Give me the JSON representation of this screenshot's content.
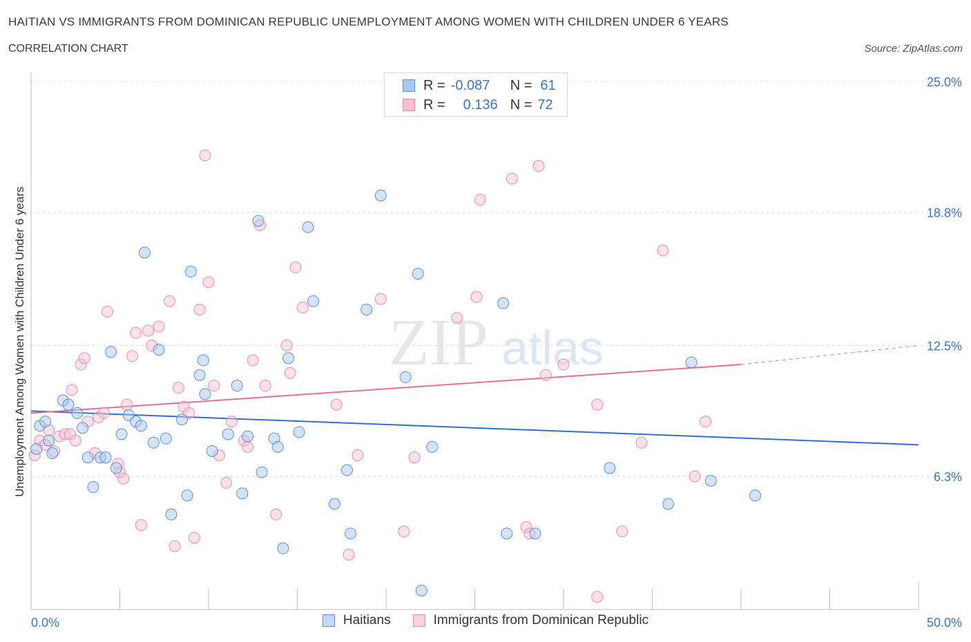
{
  "header": {
    "title": "HAITIAN VS IMMIGRANTS FROM DOMINICAN REPUBLIC UNEMPLOYMENT AMONG WOMEN WITH CHILDREN UNDER 6 YEARS",
    "subtitle": "CORRELATION CHART",
    "source": "Source: ZipAtlas.com"
  },
  "watermark": {
    "zip": "ZIP",
    "atlas": "atlas"
  },
  "legend": {
    "rows": [
      {
        "r_label": "R =",
        "r_value": "-0.087",
        "n_label": "N =",
        "n_value": "61"
      },
      {
        "r_label": "R =",
        "r_value": "0.136",
        "n_label": "N =",
        "n_value": "72"
      }
    ]
  },
  "colors": {
    "blue_fill": "#aac8f0",
    "blue_stroke": "#5b8fd6",
    "blue_line": "#2e6fcf",
    "pink_fill": "#f7bfd0",
    "pink_stroke": "#e98aa8",
    "pink_line": "#e0709a",
    "axis_label": "#3b73c9",
    "grid": "#dcdcdc"
  },
  "chart_data": {
    "type": "scatter",
    "title": "HAITIAN VS IMMIGRANTS FROM DOMINICAN REPUBLIC UNEMPLOYMENT AMONG WOMEN WITH CHILDREN UNDER 6 YEARS",
    "xlabel": "",
    "ylabel": "Unemployment Among Women with Children Under 6 years",
    "xlim": [
      0,
      50
    ],
    "ylim": [
      0,
      25
    ],
    "x_tick_labels": [
      "0.0%",
      "50.0%"
    ],
    "y_ticks": [
      6.3,
      12.5,
      18.8,
      25.0
    ],
    "y_tick_labels": [
      "6.3%",
      "12.5%",
      "18.8%",
      "25.0%"
    ],
    "grid": true,
    "legend_position": "top-center",
    "series": [
      {
        "name": "Haitians",
        "r": -0.087,
        "n": 61,
        "trend": {
          "x": [
            0,
            50
          ],
          "y": [
            9.4,
            7.8
          ]
        },
        "points": [
          [
            0.3,
            7.6
          ],
          [
            0.5,
            8.7
          ],
          [
            0.8,
            8.9
          ],
          [
            1.0,
            8.0
          ],
          [
            1.2,
            7.4
          ],
          [
            1.8,
            9.9
          ],
          [
            2.1,
            9.7
          ],
          [
            2.6,
            9.3
          ],
          [
            2.9,
            8.6
          ],
          [
            3.2,
            7.2
          ],
          [
            3.5,
            5.8
          ],
          [
            3.9,
            7.2
          ],
          [
            4.2,
            7.2
          ],
          [
            4.5,
            12.2
          ],
          [
            4.8,
            6.7
          ],
          [
            5.1,
            8.3
          ],
          [
            5.5,
            9.2
          ],
          [
            5.9,
            8.9
          ],
          [
            6.2,
            8.7
          ],
          [
            6.4,
            16.9
          ],
          [
            6.9,
            7.9
          ],
          [
            7.2,
            12.3
          ],
          [
            7.6,
            8.1
          ],
          [
            7.9,
            4.5
          ],
          [
            8.5,
            9.0
          ],
          [
            8.8,
            5.4
          ],
          [
            9.0,
            16.0
          ],
          [
            9.5,
            11.1
          ],
          [
            9.7,
            11.8
          ],
          [
            9.8,
            10.2
          ],
          [
            10.2,
            7.5
          ],
          [
            11.1,
            8.3
          ],
          [
            11.6,
            10.6
          ],
          [
            11.9,
            5.5
          ],
          [
            12.2,
            8.2
          ],
          [
            12.8,
            18.4
          ],
          [
            13.0,
            6.5
          ],
          [
            13.7,
            8.1
          ],
          [
            13.9,
            7.7
          ],
          [
            14.2,
            2.9
          ],
          [
            14.5,
            11.9
          ],
          [
            15.1,
            8.4
          ],
          [
            15.6,
            18.1
          ],
          [
            15.9,
            14.6
          ],
          [
            17.1,
            5.0
          ],
          [
            17.8,
            6.6
          ],
          [
            18.0,
            3.6
          ],
          [
            18.9,
            14.2
          ],
          [
            19.7,
            19.6
          ],
          [
            21.1,
            11.0
          ],
          [
            21.8,
            15.9
          ],
          [
            22.0,
            0.9
          ],
          [
            22.6,
            7.7
          ],
          [
            26.6,
            14.5
          ],
          [
            26.8,
            3.6
          ],
          [
            28.4,
            3.6
          ],
          [
            32.6,
            6.7
          ],
          [
            35.9,
            5.0
          ],
          [
            37.2,
            11.7
          ],
          [
            38.3,
            6.1
          ],
          [
            40.8,
            5.4
          ]
        ]
      },
      {
        "name": "Immigrants from Dominican Republic",
        "r": 0.136,
        "n": 72,
        "trend": {
          "x": [
            0,
            40
          ],
          "y": [
            9.3,
            11.6
          ]
        },
        "trend_dashed": {
          "x": [
            40,
            50
          ],
          "y": [
            11.6,
            12.5
          ]
        },
        "points": [
          [
            0.2,
            7.3
          ],
          [
            0.5,
            8.0
          ],
          [
            0.8,
            7.8
          ],
          [
            1.0,
            8.5
          ],
          [
            1.3,
            7.5
          ],
          [
            1.6,
            8.2
          ],
          [
            1.9,
            8.3
          ],
          [
            2.2,
            8.3
          ],
          [
            2.3,
            10.4
          ],
          [
            2.5,
            8.0
          ],
          [
            2.8,
            11.6
          ],
          [
            3.0,
            11.9
          ],
          [
            3.2,
            8.9
          ],
          [
            3.6,
            7.4
          ],
          [
            3.8,
            9.1
          ],
          [
            4.1,
            9.3
          ],
          [
            4.3,
            14.1
          ],
          [
            4.9,
            6.9
          ],
          [
            5.0,
            6.5
          ],
          [
            5.2,
            6.2
          ],
          [
            5.4,
            9.7
          ],
          [
            5.7,
            12.0
          ],
          [
            5.9,
            13.1
          ],
          [
            6.2,
            4.0
          ],
          [
            6.6,
            13.2
          ],
          [
            6.8,
            12.5
          ],
          [
            7.2,
            13.4
          ],
          [
            7.8,
            14.6
          ],
          [
            8.1,
            3.0
          ],
          [
            8.3,
            10.5
          ],
          [
            8.6,
            9.6
          ],
          [
            8.9,
            9.3
          ],
          [
            9.2,
            3.4
          ],
          [
            9.5,
            14.2
          ],
          [
            9.8,
            21.5
          ],
          [
            10.0,
            15.5
          ],
          [
            10.3,
            10.6
          ],
          [
            10.6,
            7.3
          ],
          [
            11.0,
            6.0
          ],
          [
            11.3,
            8.9
          ],
          [
            12.0,
            8.0
          ],
          [
            12.2,
            7.7
          ],
          [
            12.5,
            11.8
          ],
          [
            12.9,
            18.2
          ],
          [
            13.2,
            10.6
          ],
          [
            13.8,
            4.5
          ],
          [
            14.4,
            12.5
          ],
          [
            14.6,
            11.2
          ],
          [
            14.9,
            16.2
          ],
          [
            15.3,
            14.3
          ],
          [
            17.2,
            9.7
          ],
          [
            17.9,
            2.6
          ],
          [
            18.4,
            7.3
          ],
          [
            19.7,
            14.7
          ],
          [
            21.0,
            3.7
          ],
          [
            21.6,
            7.2
          ],
          [
            24.0,
            13.8
          ],
          [
            25.1,
            14.8
          ],
          [
            25.3,
            19.4
          ],
          [
            27.1,
            20.4
          ],
          [
            27.9,
            3.9
          ],
          [
            28.1,
            3.6
          ],
          [
            28.6,
            21.0
          ],
          [
            29.0,
            11.1
          ],
          [
            30.0,
            11.6
          ],
          [
            31.9,
            9.7
          ],
          [
            31.9,
            0.6
          ],
          [
            33.3,
            3.7
          ],
          [
            34.4,
            7.9
          ],
          [
            35.6,
            17.0
          ],
          [
            37.4,
            6.3
          ],
          [
            38.0,
            8.9
          ]
        ]
      }
    ]
  }
}
